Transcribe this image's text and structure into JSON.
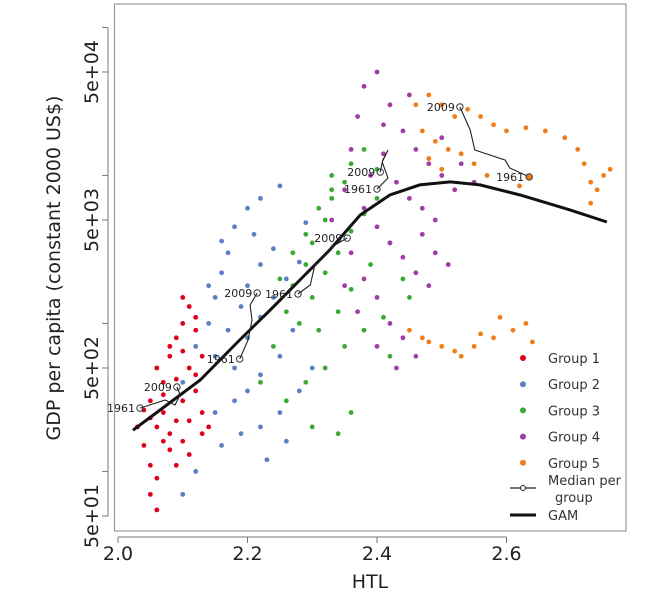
{
  "chart_data": {
    "type": "scatter",
    "title": "",
    "xlabel": "HTL",
    "ylabel": "GDP per capita (constant 2000 US$)",
    "y_scale": "log",
    "xlim": [
      1.995,
      2.785
    ],
    "ylim": [
      40,
      144000
    ],
    "grid": false,
    "legend_placement": "bottom-right",
    "x_ticks": [
      {
        "value": 2.0,
        "label": "2.0"
      },
      {
        "value": 2.2,
        "label": "2.2"
      },
      {
        "value": 2.4,
        "label": "2.4"
      },
      {
        "value": 2.6,
        "label": "2.6"
      }
    ],
    "y_ticks": [
      {
        "value": 50,
        "label": "5e+01"
      },
      {
        "value": 500,
        "label": "5e+02"
      },
      {
        "value": 5000,
        "label": "5e+03"
      },
      {
        "value": 50000,
        "label": "5e+04"
      }
    ],
    "y_minor_ticks": [
      100,
      1000,
      10000,
      100000
    ],
    "series": [
      {
        "name": "Group 1",
        "color": "#e0001b",
        "points": [
          [
            2.04,
            150
          ],
          [
            2.05,
            110
          ],
          [
            2.06,
            200
          ],
          [
            2.05,
            300
          ],
          [
            2.07,
            250
          ],
          [
            2.08,
            180
          ],
          [
            2.09,
            220
          ],
          [
            2.1,
            300
          ],
          [
            2.07,
            400
          ],
          [
            2.06,
            500
          ],
          [
            2.08,
            600
          ],
          [
            2.09,
            800
          ],
          [
            2.1,
            1000
          ],
          [
            2.11,
            1300
          ],
          [
            2.12,
            900
          ],
          [
            2.11,
            500
          ],
          [
            2.12,
            350
          ],
          [
            2.13,
            250
          ],
          [
            2.14,
            200
          ],
          [
            2.13,
            600
          ],
          [
            2.06,
            90
          ],
          [
            2.05,
            70
          ],
          [
            2.06,
            55
          ],
          [
            2.08,
            140
          ],
          [
            2.1,
            160
          ],
          [
            2.11,
            220
          ],
          [
            2.09,
            420
          ],
          [
            2.07,
            330
          ],
          [
            2.04,
            260
          ],
          [
            2.03,
            200
          ],
          [
            2.08,
            700
          ],
          [
            2.1,
            650
          ],
          [
            2.12,
            450
          ],
          [
            2.13,
            180
          ],
          [
            2.11,
            130
          ],
          [
            2.09,
            110
          ],
          [
            2.07,
            160
          ],
          [
            2.05,
            230
          ],
          [
            2.12,
            1100
          ],
          [
            2.1,
            1500
          ]
        ]
      },
      {
        "name": "Group 2",
        "color": "#5b7fc4",
        "points": [
          [
            2.1,
            400
          ],
          [
            2.12,
            700
          ],
          [
            2.14,
            1000
          ],
          [
            2.15,
            1500
          ],
          [
            2.16,
            2200
          ],
          [
            2.17,
            3000
          ],
          [
            2.18,
            4500
          ],
          [
            2.2,
            6000
          ],
          [
            2.22,
            7000
          ],
          [
            2.25,
            8500
          ],
          [
            2.15,
            600
          ],
          [
            2.17,
            900
          ],
          [
            2.19,
            1300
          ],
          [
            2.2,
            1800
          ],
          [
            2.22,
            2500
          ],
          [
            2.24,
            3200
          ],
          [
            2.18,
            500
          ],
          [
            2.2,
            800
          ],
          [
            2.22,
            1100
          ],
          [
            2.24,
            1500
          ],
          [
            2.26,
            2000
          ],
          [
            2.28,
            2600
          ],
          [
            2.15,
            250
          ],
          [
            2.18,
            300
          ],
          [
            2.2,
            350
          ],
          [
            2.22,
            450
          ],
          [
            2.25,
            600
          ],
          [
            2.27,
            900
          ],
          [
            2.16,
            150
          ],
          [
            2.19,
            180
          ],
          [
            2.22,
            200
          ],
          [
            2.25,
            250
          ],
          [
            2.28,
            350
          ],
          [
            2.3,
            500
          ],
          [
            2.12,
            100
          ],
          [
            2.1,
            70
          ],
          [
            2.14,
            1800
          ],
          [
            2.16,
            3600
          ],
          [
            2.21,
            4000
          ],
          [
            2.29,
            4800
          ],
          [
            2.23,
            120
          ],
          [
            2.26,
            160
          ]
        ]
      },
      {
        "name": "Group 3",
        "color": "#3aaa35",
        "points": [
          [
            2.22,
            400
          ],
          [
            2.24,
            700
          ],
          [
            2.26,
            1200
          ],
          [
            2.27,
            1800
          ],
          [
            2.29,
            2500
          ],
          [
            2.3,
            3500
          ],
          [
            2.32,
            5000
          ],
          [
            2.33,
            7000
          ],
          [
            2.35,
            9000
          ],
          [
            2.36,
            12000
          ],
          [
            2.38,
            15000
          ],
          [
            2.25,
            2000
          ],
          [
            2.27,
            3000
          ],
          [
            2.29,
            4000
          ],
          [
            2.31,
            6000
          ],
          [
            2.33,
            8000
          ],
          [
            2.3,
            1500
          ],
          [
            2.32,
            2200
          ],
          [
            2.34,
            3000
          ],
          [
            2.36,
            4200
          ],
          [
            2.38,
            5500
          ],
          [
            2.4,
            7000
          ],
          [
            2.28,
            1000
          ],
          [
            2.31,
            900
          ],
          [
            2.34,
            1200
          ],
          [
            2.36,
            1700
          ],
          [
            2.39,
            2500
          ],
          [
            2.42,
            3500
          ],
          [
            2.44,
            2000
          ],
          [
            2.26,
            300
          ],
          [
            2.29,
            400
          ],
          [
            2.32,
            500
          ],
          [
            2.35,
            700
          ],
          [
            2.38,
            900
          ],
          [
            2.41,
            1100
          ],
          [
            2.3,
            200
          ],
          [
            2.34,
            180
          ],
          [
            2.36,
            250
          ],
          [
            2.42,
            600
          ],
          [
            2.45,
            1500
          ],
          [
            2.33,
            10000
          ],
          [
            2.4,
            11000
          ]
        ]
      },
      {
        "name": "Group 4",
        "color": "#a03ca5",
        "points": [
          [
            2.33,
            5000
          ],
          [
            2.35,
            8000
          ],
          [
            2.36,
            15000
          ],
          [
            2.37,
            25000
          ],
          [
            2.38,
            40000
          ],
          [
            2.4,
            50000
          ],
          [
            2.42,
            30000
          ],
          [
            2.44,
            20000
          ],
          [
            2.46,
            15000
          ],
          [
            2.48,
            12000
          ],
          [
            2.5,
            10000
          ],
          [
            2.52,
            8000
          ],
          [
            2.39,
            10000
          ],
          [
            2.41,
            14000
          ],
          [
            2.43,
            9000
          ],
          [
            2.45,
            7000
          ],
          [
            2.47,
            6000
          ],
          [
            2.49,
            5000
          ],
          [
            2.38,
            6000
          ],
          [
            2.4,
            4500
          ],
          [
            2.42,
            3500
          ],
          [
            2.44,
            2800
          ],
          [
            2.46,
            2200
          ],
          [
            2.48,
            1800
          ],
          [
            2.36,
            3000
          ],
          [
            2.38,
            2000
          ],
          [
            2.4,
            1500
          ],
          [
            2.42,
            1000
          ],
          [
            2.44,
            800
          ],
          [
            2.46,
            600
          ],
          [
            2.4,
            700
          ],
          [
            2.43,
            500
          ],
          [
            2.37,
            1200
          ],
          [
            2.35,
            1800
          ],
          [
            2.45,
            35000
          ],
          [
            2.41,
            22000
          ],
          [
            2.5,
            18000
          ],
          [
            2.53,
            12000
          ],
          [
            2.55,
            9000
          ],
          [
            2.47,
            4000
          ],
          [
            2.49,
            3000
          ],
          [
            2.51,
            2500
          ]
        ]
      },
      {
        "name": "Group 5",
        "color": "#f07d1a",
        "points": [
          [
            2.46,
            30000
          ],
          [
            2.48,
            35000
          ],
          [
            2.5,
            30000
          ],
          [
            2.52,
            25000
          ],
          [
            2.54,
            28000
          ],
          [
            2.56,
            25000
          ],
          [
            2.58,
            22000
          ],
          [
            2.47,
            20000
          ],
          [
            2.49,
            17000
          ],
          [
            2.51,
            15000
          ],
          [
            2.53,
            14000
          ],
          [
            2.55,
            12000
          ],
          [
            2.57,
            10000
          ],
          [
            2.5,
            11000
          ],
          [
            2.48,
            13000
          ],
          [
            2.6,
            20000
          ],
          [
            2.63,
            21000
          ],
          [
            2.66,
            20000
          ],
          [
            2.69,
            18000
          ],
          [
            2.71,
            15000
          ],
          [
            2.72,
            12000
          ],
          [
            2.73,
            9000
          ],
          [
            2.74,
            8000
          ],
          [
            2.75,
            10000
          ],
          [
            2.73,
            6500
          ],
          [
            2.76,
            11000
          ],
          [
            2.62,
            8500
          ],
          [
            2.45,
            900
          ],
          [
            2.47,
            800
          ],
          [
            2.5,
            700
          ],
          [
            2.52,
            650
          ],
          [
            2.55,
            700
          ],
          [
            2.58,
            800
          ],
          [
            2.61,
            900
          ],
          [
            2.63,
            1000
          ],
          [
            2.64,
            750
          ],
          [
            2.56,
            850
          ],
          [
            2.48,
            750
          ],
          [
            2.53,
            600
          ],
          [
            2.59,
            1100
          ]
        ]
      }
    ],
    "medians": {
      "name": "Median per group",
      "start_label": "1961",
      "end_label": "2009",
      "paths": [
        [
          [
            2.034,
            268
          ],
          [
            2.073,
            304
          ],
          [
            2.088,
            281
          ],
          [
            2.096,
            329
          ],
          [
            2.091,
            372
          ]
        ],
        [
          [
            2.188,
            575
          ],
          [
            2.201,
            773
          ],
          [
            2.207,
            1054
          ],
          [
            2.204,
            1333
          ],
          [
            2.215,
            1607
          ]
        ],
        [
          [
            2.278,
            1581
          ],
          [
            2.297,
            1820
          ],
          [
            2.304,
            2483
          ],
          [
            2.32,
            2904
          ],
          [
            2.335,
            3390
          ],
          [
            2.354,
            3777
          ]
        ],
        [
          [
            2.4,
            8090
          ],
          [
            2.417,
            9610
          ],
          [
            2.408,
            12330
          ],
          [
            2.417,
            14860
          ],
          [
            2.409,
            12700
          ],
          [
            2.405,
            10540
          ]
        ],
        [
          [
            2.635,
            9770
          ],
          [
            2.605,
            11230
          ],
          [
            2.598,
            12700
          ],
          [
            2.575,
            13730
          ],
          [
            2.551,
            14860
          ],
          [
            2.544,
            20280
          ],
          [
            2.528,
            29040
          ]
        ]
      ]
    },
    "gam": {
      "name": "GAM",
      "points": [
        [
          2.023,
          190
        ],
        [
          2.065,
          260
        ],
        [
          2.127,
          415
        ],
        [
          2.188,
          773
        ],
        [
          2.235,
          1233
        ],
        [
          2.281,
          1967
        ],
        [
          2.327,
          3136
        ],
        [
          2.374,
          5405
        ],
        [
          2.42,
          7380
        ],
        [
          2.466,
          8630
        ],
        [
          2.513,
          9040
        ],
        [
          2.559,
          8630
        ],
        [
          2.621,
          7380
        ],
        [
          2.698,
          5850
        ],
        [
          2.755,
          4850
        ]
      ]
    },
    "legend": [
      "Group 1",
      "Group 2",
      "Group 3",
      "Group 4",
      "Group 5",
      "Median per group",
      "GAM"
    ]
  }
}
